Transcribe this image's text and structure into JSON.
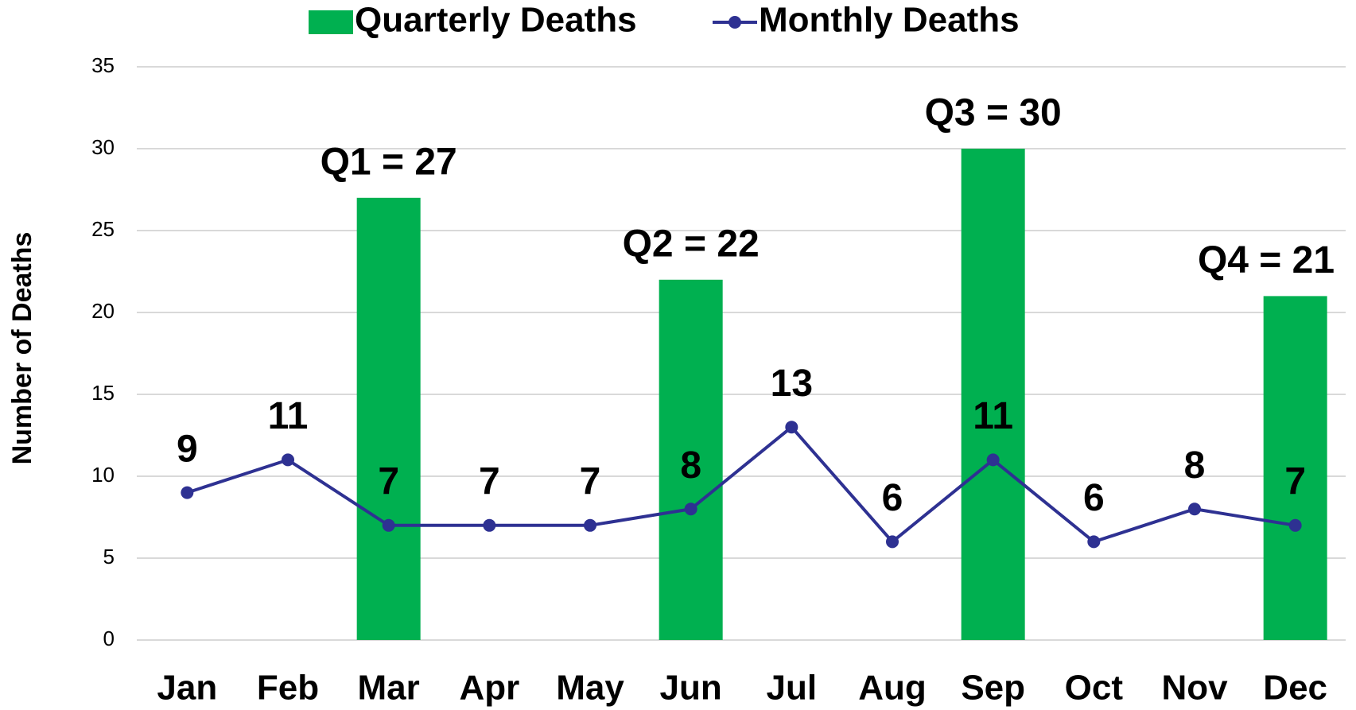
{
  "chart_data": {
    "type": "bar_line",
    "y_label": "Number of Deaths",
    "categories": [
      "Jan",
      "Feb",
      "Mar",
      "Apr",
      "May",
      "Jun",
      "Jul",
      "Aug",
      "Sep",
      "Oct",
      "Nov",
      "Dec"
    ],
    "series": [
      {
        "name": "Quarterly Deaths",
        "type": "bar",
        "color": "#00b050",
        "values": [
          null,
          null,
          27,
          null,
          null,
          22,
          null,
          null,
          30,
          null,
          null,
          21
        ],
        "value_labels": [
          null,
          null,
          "Q1 = 27",
          null,
          null,
          "Q2 = 22",
          null,
          null,
          "Q3 = 30",
          null,
          null,
          "Q4 = 21"
        ]
      },
      {
        "name": "Monthly Deaths",
        "type": "line",
        "color": "#2e3192",
        "values": [
          9,
          11,
          7,
          7,
          7,
          8,
          13,
          6,
          11,
          6,
          8,
          7
        ]
      }
    ],
    "ylim": [
      0,
      35
    ],
    "yticks": [
      0,
      5,
      10,
      15,
      20,
      25,
      30,
      35
    ],
    "grid": true,
    "legend": "top"
  }
}
